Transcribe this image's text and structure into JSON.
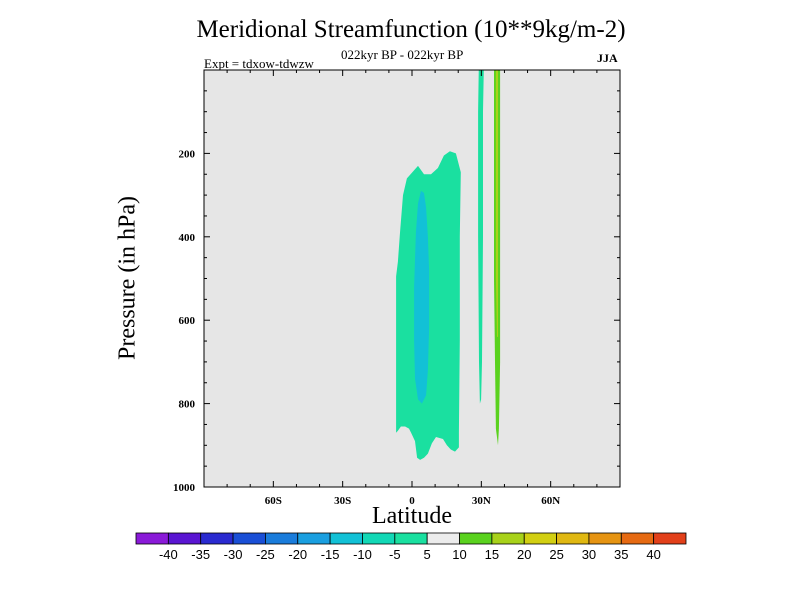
{
  "chart_data": {
    "type": "heatmap",
    "title": "Meridional Streamfunction (10**9kg/m-2)",
    "subtitle": "022kyr BP - 022kyr BP",
    "expt": "Expt = tdxow-tdwzw",
    "season": "JJA",
    "xlabel": "Latitude",
    "ylabel": "Pressure (in hPa)",
    "xlim": [
      -90,
      90
    ],
    "ylim": [
      1000,
      0
    ],
    "x_ticks": [
      {
        "value": -60,
        "label": "60S"
      },
      {
        "value": -30,
        "label": "30S"
      },
      {
        "value": 0,
        "label": "0"
      },
      {
        "value": 30,
        "label": "30N"
      },
      {
        "value": 60,
        "label": "60N"
      }
    ],
    "y_ticks": [
      {
        "value": 200,
        "label": "200"
      },
      {
        "value": 400,
        "label": "400"
      },
      {
        "value": 600,
        "label": "600"
      },
      {
        "value": 800,
        "label": "800"
      },
      {
        "value": 1000,
        "label": "1000"
      }
    ],
    "background_color": "#e6e6e6",
    "colorbar": {
      "levels": [
        "-40",
        "-35",
        "-30",
        "-25",
        "-20",
        "-15",
        "-10",
        "-5",
        "5",
        "10",
        "15",
        "20",
        "25",
        "30",
        "35",
        "40"
      ],
      "colors": [
        "#8a1ad8",
        "#5a15d2",
        "#2a2ad0",
        "#1a4fd6",
        "#1a7cdb",
        "#1a9fe0",
        "#12c1d6",
        "#12d8b6",
        "#1ae0a0",
        "#ececec",
        "#5ad21e",
        "#a8d21a",
        "#d2cf12",
        "#e0b812",
        "#e69412",
        "#e66a12",
        "#e2401a"
      ]
    },
    "regions": [
      {
        "name": "southern-cell-outer",
        "value_range": [
          -10,
          -5
        ],
        "color": "#1ae0a0",
        "polygon": [
          [
            -6.9,
            870
          ],
          [
            -6.9,
            495
          ],
          [
            -6.1,
            460
          ],
          [
            -5.2,
            390
          ],
          [
            -3.9,
            300
          ],
          [
            -2.2,
            260
          ],
          [
            2.6,
            230
          ],
          [
            5.2,
            250
          ],
          [
            8.2,
            250
          ],
          [
            11.2,
            235
          ],
          [
            13.8,
            205
          ],
          [
            16.4,
            195
          ],
          [
            19,
            200
          ],
          [
            21.1,
            245
          ],
          [
            20.7,
            400
          ],
          [
            20.7,
            650
          ],
          [
            20.3,
            870
          ],
          [
            20.3,
            905
          ],
          [
            18.6,
            915
          ],
          [
            16.8,
            910
          ],
          [
            15.1,
            900
          ],
          [
            13.4,
            885
          ],
          [
            10.4,
            880
          ],
          [
            8.6,
            895
          ],
          [
            6.9,
            920
          ],
          [
            5.2,
            930
          ],
          [
            3.5,
            935
          ],
          [
            2.2,
            930
          ],
          [
            1.3,
            890
          ],
          [
            -0.4,
            870
          ],
          [
            -1.3,
            860
          ],
          [
            -3,
            855
          ],
          [
            -4.8,
            855
          ],
          [
            -6.1,
            865
          ]
        ]
      },
      {
        "name": "southern-cell-core",
        "value_range": [
          -15,
          -10
        ],
        "color": "#12c1d6",
        "polygon": [
          [
            0.9,
            650
          ],
          [
            0.9,
            520
          ],
          [
            1.7,
            390
          ],
          [
            2.6,
            320
          ],
          [
            3.9,
            290
          ],
          [
            5.2,
            295
          ],
          [
            6.1,
            330
          ],
          [
            6.9,
            400
          ],
          [
            7.4,
            480
          ],
          [
            7.4,
            620
          ],
          [
            6.9,
            720
          ],
          [
            6.1,
            780
          ],
          [
            4.3,
            800
          ],
          [
            2.6,
            790
          ],
          [
            1.3,
            740
          ]
        ]
      },
      {
        "name": "near-30n-strip",
        "value_range": [
          -10,
          -5
        ],
        "color": "#1ae0a0",
        "polygon": [
          [
            29,
            -40
          ],
          [
            31.2,
            -40
          ],
          [
            30.7,
            100
          ],
          [
            30.7,
            400
          ],
          [
            30.3,
            700
          ],
          [
            29.9,
            790
          ],
          [
            29.4,
            800
          ],
          [
            29,
            700
          ],
          [
            28.6,
            400
          ],
          [
            28.6,
            100
          ]
        ]
      },
      {
        "name": "near-35n-positive-outer",
        "value_range": [
          5,
          10
        ],
        "color": "#5ad21e",
        "polygon": [
          [
            35.5,
            -40
          ],
          [
            38.1,
            -40
          ],
          [
            38.1,
            200
          ],
          [
            38.1,
            500
          ],
          [
            38.1,
            700
          ],
          [
            37.6,
            860
          ],
          [
            37.2,
            900
          ],
          [
            36.3,
            860
          ],
          [
            35.9,
            700
          ],
          [
            35.5,
            500
          ],
          [
            35.5,
            200
          ]
        ]
      },
      {
        "name": "near-35n-positive-core",
        "value_range": [
          10,
          15
        ],
        "color": "#a8d21a",
        "polygon": [
          [
            36.3,
            -40
          ],
          [
            37.2,
            -40
          ],
          [
            37.2,
            200
          ],
          [
            37.2,
            500
          ],
          [
            37.2,
            640
          ],
          [
            36.8,
            640
          ],
          [
            36.3,
            500
          ],
          [
            36.3,
            200
          ]
        ]
      }
    ]
  }
}
